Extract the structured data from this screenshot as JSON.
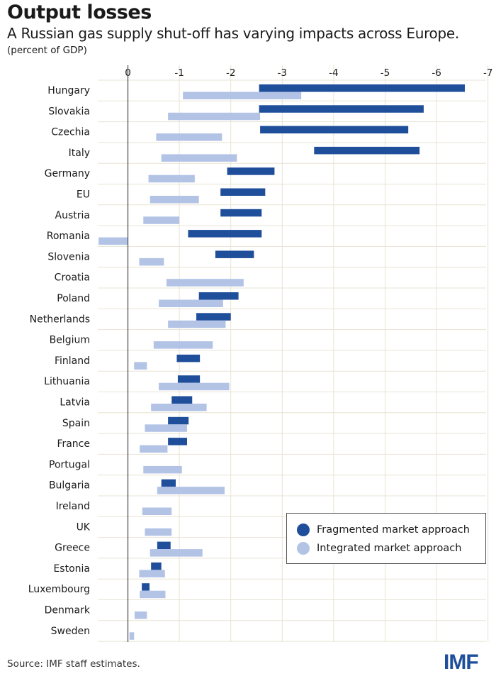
{
  "header": {
    "title": "Output losses",
    "subtitle": "A Russian gas supply shut-off has varying impacts across Europe.",
    "unit": "(percent of GDP)"
  },
  "footer": {
    "source": "Source: IMF staff estimates.",
    "logo_text": "IMF"
  },
  "colors": {
    "fragmented": "#1f4e9b",
    "integrated": "#b3c3e6",
    "grid": "#e8e3d4",
    "zero_line": "#555555"
  },
  "legend": {
    "fragmented_label": "Fragmented market approach",
    "integrated_label": "Integrated market approach"
  },
  "chart_data": {
    "type": "bar",
    "orientation": "horizontal-floating-range",
    "title": "Output losses",
    "xlabel": "",
    "ylabel": "",
    "xlim": [
      0.5,
      -7
    ],
    "x_ticks": [
      0,
      -1,
      -2,
      -3,
      -4,
      -5,
      -6,
      -7
    ],
    "x_tick_labels": [
      "0",
      "-1",
      "-2",
      "-3",
      "-4",
      "-5",
      "-6",
      "-7"
    ],
    "grid": true,
    "legend_position": "bottom-right",
    "categories": [
      "Hungary",
      "Slovakia",
      "Czechia",
      "Italy",
      "Germany",
      "EU",
      "Austria",
      "Romania",
      "Slovenia",
      "Croatia",
      "Poland",
      "Netherlands",
      "Belgium",
      "Finland",
      "Lithuania",
      "Latvia",
      "Spain",
      "France",
      "Portugal",
      "Bulgaria",
      "Ireland",
      "UK",
      "Greece",
      "Estonia",
      "Luxembourg",
      "Denmark",
      "Sweden"
    ],
    "series": [
      {
        "name": "Fragmented market approach",
        "ranges": [
          [
            -2.55,
            -6.55
          ],
          [
            -2.55,
            -5.75
          ],
          [
            -2.57,
            -5.45
          ],
          [
            -3.62,
            -5.67
          ],
          [
            -1.93,
            -2.85
          ],
          [
            -1.8,
            -2.67
          ],
          [
            -1.8,
            -2.6
          ],
          [
            -1.17,
            -2.6
          ],
          [
            -1.7,
            -2.45
          ],
          null,
          [
            -1.38,
            -2.15
          ],
          [
            -1.33,
            -2.0
          ],
          null,
          [
            -0.95,
            -1.4
          ],
          [
            -0.97,
            -1.4
          ],
          [
            -0.85,
            -1.25
          ],
          [
            -0.78,
            -1.18
          ],
          [
            -0.78,
            -1.15
          ],
          null,
          [
            -0.65,
            -0.93
          ],
          null,
          null,
          [
            -0.57,
            -0.83
          ],
          [
            -0.45,
            -0.65
          ],
          [
            -0.27,
            -0.42
          ],
          null,
          null
        ]
      },
      {
        "name": "Integrated market approach",
        "ranges": [
          [
            -1.07,
            -3.37
          ],
          [
            -0.78,
            -2.57
          ],
          [
            -0.55,
            -1.83
          ],
          [
            -0.65,
            -2.12
          ],
          [
            -0.4,
            -1.3
          ],
          [
            -0.43,
            -1.38
          ],
          [
            -0.3,
            -1.0
          ],
          [
            0.57,
            0.0
          ],
          [
            -0.22,
            -0.7
          ],
          [
            -0.75,
            -2.25
          ],
          [
            -0.6,
            -1.85
          ],
          [
            -0.78,
            -1.9
          ],
          [
            -0.5,
            -1.65
          ],
          [
            -0.12,
            -0.37
          ],
          [
            -0.6,
            -1.97
          ],
          [
            -0.45,
            -1.53
          ],
          [
            -0.33,
            -1.15
          ],
          [
            -0.23,
            -0.77
          ],
          [
            -0.3,
            -1.05
          ],
          [
            -0.57,
            -1.88
          ],
          [
            -0.28,
            -0.85
          ],
          [
            -0.33,
            -0.85
          ],
          [
            -0.43,
            -1.45
          ],
          [
            -0.22,
            -0.72
          ],
          [
            -0.23,
            -0.73
          ],
          [
            -0.13,
            -0.37
          ],
          [
            -0.03,
            -0.12
          ]
        ]
      }
    ]
  }
}
